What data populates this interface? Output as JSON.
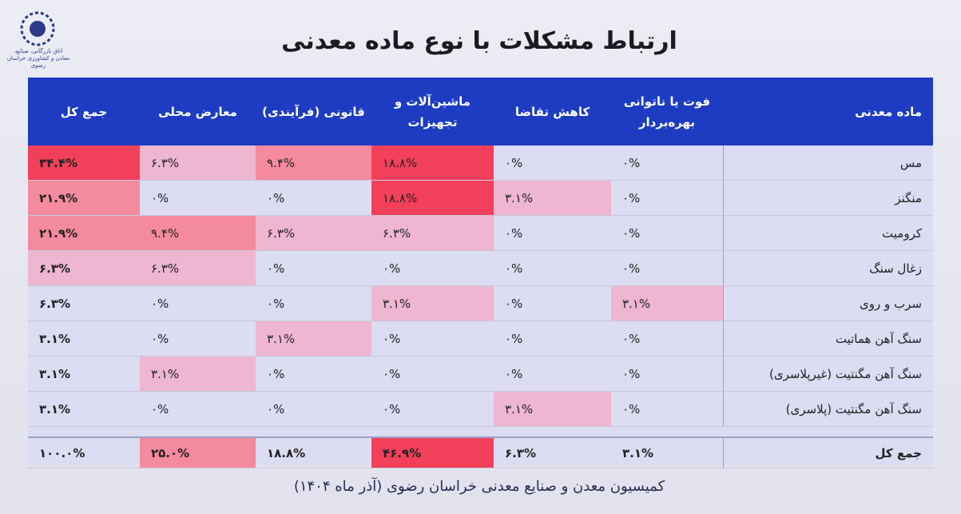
{
  "header": {
    "title": "ارتباط مشکلات با نوع ماده معدنی",
    "logo_text": "اتاق بازرگانی، صنایع، معادن و کشاورزی خراسان رضوی"
  },
  "table": {
    "columns": [
      "ماده معدنی",
      "فوت یا ناتوانی بهره‌بردار",
      "کاهش تقاضا",
      "ماشین‌آلات و تجهیزات",
      "قانونی (فرآیندی)",
      "معارض محلی",
      "جمع کل"
    ],
    "rows": [
      [
        "مس",
        "۰%",
        "۰%",
        "۱۸.۸%",
        "۹.۴%",
        "۶.۳%",
        "۳۴.۴%"
      ],
      [
        "منگنز",
        "۰%",
        "۳.۱%",
        "۱۸.۸%",
        "۰%",
        "۰%",
        "۲۱.۹%"
      ],
      [
        "کرومیت",
        "۰%",
        "۰%",
        "۶.۳%",
        "۶.۳%",
        "۹.۴%",
        "۲۱.۹%"
      ],
      [
        "زغال سنگ",
        "۰%",
        "۰%",
        "۰%",
        "۰%",
        "۶.۳%",
        "۶.۳%"
      ],
      [
        "سرب و روی",
        "۳.۱%",
        "۰%",
        "۳.۱%",
        "۰%",
        "۰%",
        "۶.۳%"
      ],
      [
        "سنگ آهن هماتیت",
        "۰%",
        "۰%",
        "۰%",
        "۳.۱%",
        "۰%",
        "۳.۱%"
      ],
      [
        "سنگ آهن مگنتیت (غیرپلاسری)",
        "۰%",
        "۰%",
        "۰%",
        "۰%",
        "۳.۱%",
        "۳.۱%"
      ],
      [
        "سنگ آهن مگنتیت (پلاسری)",
        "۰%",
        "۳.۱%",
        "۰%",
        "۰%",
        "۰%",
        "۳.۱%"
      ],
      [
        "جمع کل",
        "۳.۱%",
        "۶.۳%",
        "۴۶.۹%",
        "۱۸.۸%",
        "۲۵.۰%",
        "۱۰۰.۰%"
      ]
    ]
  },
  "footer": "کمیسیون معدن و صنایع معدنی خراسان رضوی (آذر ماه ۱۴۰۴)"
}
